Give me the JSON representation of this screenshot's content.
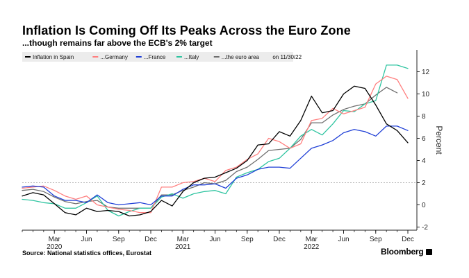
{
  "header": {
    "title": "Inflation Is Coming Off Its Peaks Across the Euro Zone",
    "subtitle": "...though remains far above the ECB's 2% target"
  },
  "footer": {
    "source": "Source: National statistics offices, Eurostat",
    "brand": "Bloomberg"
  },
  "chart_data": {
    "type": "line",
    "title": "Inflation Is Coming Off Its Peaks Across the Euro Zone",
    "subtitle": "...though remains far above the ECB's 2% target",
    "ylabel": "Percent",
    "ylim": [
      -2,
      14
    ],
    "yticks": [
      -2,
      0,
      2,
      4,
      6,
      8,
      10,
      12
    ],
    "reference_line": 2,
    "legend_position": "top-left",
    "legend_suffix": "on 11/30/22",
    "x": [
      "2019-12",
      "2020-01",
      "2020-02",
      "2020-03",
      "2020-04",
      "2020-05",
      "2020-06",
      "2020-07",
      "2020-08",
      "2020-09",
      "2020-10",
      "2020-11",
      "2020-12",
      "2021-01",
      "2021-02",
      "2021-03",
      "2021-04",
      "2021-05",
      "2021-06",
      "2021-07",
      "2021-08",
      "2021-09",
      "2021-10",
      "2021-11",
      "2021-12",
      "2022-01",
      "2022-02",
      "2022-03",
      "2022-04",
      "2022-05",
      "2022-06",
      "2022-07",
      "2022-08",
      "2022-09",
      "2022-10",
      "2022-11",
      "2022-12"
    ],
    "x_tick_labels": [
      {
        "month": "Mar",
        "year": "2020",
        "index": 3
      },
      {
        "month": "Jun",
        "year": "",
        "index": 6
      },
      {
        "month": "Sep",
        "year": "",
        "index": 9
      },
      {
        "month": "Dec",
        "year": "",
        "index": 12
      },
      {
        "month": "Mar",
        "year": "2021",
        "index": 15
      },
      {
        "month": "Jun",
        "year": "",
        "index": 18
      },
      {
        "month": "Sep",
        "year": "",
        "index": 21
      },
      {
        "month": "Dec",
        "year": "",
        "index": 24
      },
      {
        "month": "Mar",
        "year": "2022",
        "index": 27
      },
      {
        "month": "Jun",
        "year": "",
        "index": 30
      },
      {
        "month": "Sep",
        "year": "",
        "index": 33
      },
      {
        "month": "Dec",
        "year": "",
        "index": 36
      }
    ],
    "series": [
      {
        "name": "Inflation in Spain",
        "color": "#000000",
        "values": [
          0.8,
          1.1,
          0.9,
          0.1,
          -0.7,
          -0.9,
          -0.3,
          -0.6,
          -0.5,
          -0.6,
          -1.0,
          -0.9,
          -0.6,
          0.4,
          -0.1,
          1.2,
          2.0,
          2.4,
          2.5,
          2.9,
          3.3,
          4.0,
          5.4,
          5.5,
          6.6,
          6.2,
          7.6,
          9.8,
          8.3,
          8.5,
          10.0,
          10.7,
          10.5,
          9.0,
          7.3,
          6.7,
          5.6
        ]
      },
      {
        "name": "...Germany",
        "color": "#ff7f7f",
        "values": [
          1.5,
          1.6,
          1.7,
          1.3,
          0.8,
          0.5,
          0.8,
          0.0,
          -0.2,
          -0.4,
          -0.5,
          -0.7,
          -0.7,
          1.6,
          1.6,
          2.0,
          2.1,
          2.4,
          2.1,
          3.1,
          3.4,
          4.1,
          4.6,
          6.0,
          5.7,
          5.1,
          5.5,
          7.6,
          7.8,
          8.7,
          8.2,
          8.5,
          8.8,
          10.9,
          11.6,
          11.3,
          9.6
        ]
      },
      {
        "name": "...France",
        "color": "#1f3fd6",
        "values": [
          1.6,
          1.7,
          1.6,
          0.8,
          0.4,
          0.4,
          0.2,
          0.9,
          0.2,
          0.0,
          0.1,
          0.2,
          0.0,
          0.8,
          0.8,
          1.4,
          1.8,
          1.8,
          1.9,
          1.5,
          2.4,
          2.7,
          3.2,
          3.4,
          3.4,
          3.3,
          4.2,
          5.1,
          5.4,
          5.8,
          6.5,
          6.8,
          6.6,
          6.2,
          7.1,
          7.1,
          6.7
        ]
      },
      {
        "name": "...Italy",
        "color": "#2ec4a0",
        "values": [
          0.5,
          0.4,
          0.2,
          0.1,
          -0.3,
          -0.3,
          0.2,
          0.8,
          -0.5,
          -1.0,
          -0.6,
          -0.3,
          -0.3,
          0.7,
          1.0,
          0.6,
          1.0,
          1.2,
          1.3,
          1.0,
          2.5,
          2.9,
          3.2,
          3.9,
          4.2,
          5.1,
          6.2,
          6.8,
          6.3,
          7.3,
          8.5,
          8.4,
          9.1,
          9.4,
          12.6,
          12.6,
          12.3
        ]
      },
      {
        "name": "...the euro area",
        "color": "#6e6e6e",
        "values": [
          1.3,
          1.4,
          1.2,
          0.7,
          0.3,
          0.1,
          0.3,
          0.4,
          -0.2,
          -0.3,
          -0.3,
          -0.3,
          -0.3,
          0.9,
          0.9,
          1.3,
          1.6,
          2.0,
          1.9,
          2.2,
          3.0,
          3.4,
          4.1,
          4.9,
          5.0,
          5.1,
          5.9,
          7.4,
          7.4,
          8.1,
          8.6,
          8.9,
          9.1,
          9.9,
          10.6,
          10.1,
          null
        ]
      }
    ]
  }
}
